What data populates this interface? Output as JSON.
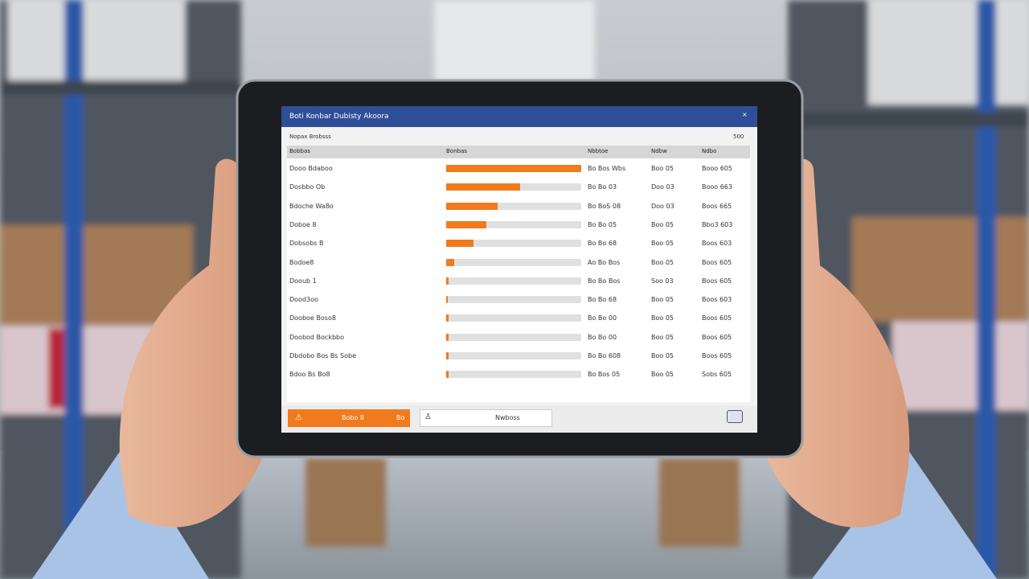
{
  "header": {
    "title": "Boti Konbar Dubisty Akoora",
    "close": "×"
  },
  "subheader": {
    "left": "Nopax Brobsss",
    "right": "500"
  },
  "table": {
    "columns": [
      "Bobbas",
      "Bonbas",
      "Nbbtoe",
      "Ndbw",
      "Ndbo"
    ],
    "rows": [
      {
        "name": "Dooo Bdaboo",
        "bar": 100,
        "c3": "Bo Bos Wbs",
        "c4": "Boo 05",
        "c5": "Booo 605"
      },
      {
        "name": "Dosbbo Ob",
        "bar": 55,
        "c3": "Bo Bo 03",
        "c4": "Doo 03",
        "c5": "Booo 663"
      },
      {
        "name": "Bdoche Wa8o",
        "bar": 38,
        "c3": "Bo BoS 08",
        "c4": "Doo 03",
        "c5": "Boos 665"
      },
      {
        "name": "Doboe 8",
        "bar": 30,
        "c3": "Bo Bo 05",
        "c4": "Boo 05",
        "c5": "Bbo3 603"
      },
      {
        "name": "Dobsobs B",
        "bar": 20,
        "c3": "Bo Bo 68",
        "c4": "Boo 05",
        "c5": "Boos 603"
      },
      {
        "name": "Bodoe8",
        "bar": 6,
        "c3": "Ao Bo Bos",
        "c4": "Boo 05",
        "c5": "Boos 605"
      },
      {
        "name": "Dooub 1",
        "bar": 2,
        "c3": "Bo Bo Bos",
        "c4": "Soo 03",
        "c5": "Boos 605"
      },
      {
        "name": "Dood3oo",
        "bar": 1,
        "c3": "Bo Bo 68",
        "c4": "Boo 05",
        "c5": "Boos 603"
      },
      {
        "name": "Dooboe Boso8",
        "bar": 2,
        "c3": "Bo Bo 00",
        "c4": "Boo 05",
        "c5": "Boos 605"
      },
      {
        "name": "Doobod Bockbbo",
        "bar": 2,
        "c3": "Bo Bo 00",
        "c4": "Boo 05",
        "c5": "Boos 605"
      },
      {
        "name": "Dbdobo Bos Bs Sobe",
        "bar": 2,
        "c3": "Bo Bo 608",
        "c4": "Boo 05",
        "c5": "Boos 605"
      },
      {
        "name": "Bdoo Bs Bo8",
        "bar": 2,
        "c3": "Bo Bos 05",
        "c4": "Boo 05",
        "c5": "Sobs 605"
      }
    ]
  },
  "footer": {
    "button": "Bobo 8",
    "button_right": "Bo",
    "field": "Nwboss"
  }
}
